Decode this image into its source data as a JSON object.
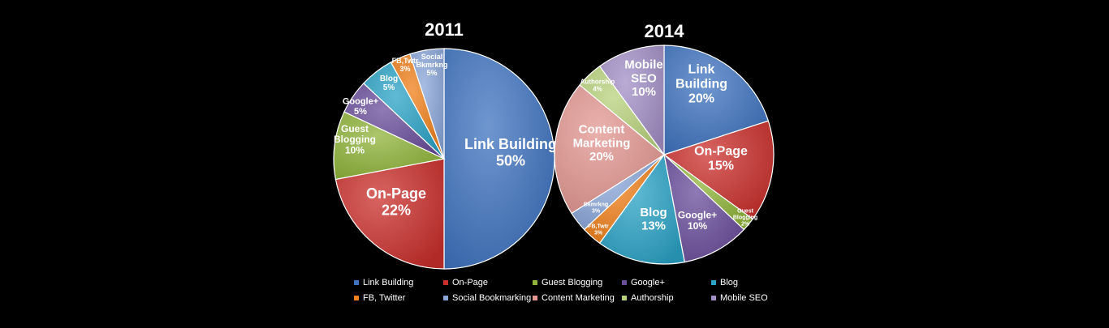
{
  "chart_data": [
    {
      "type": "pie",
      "title": "2011",
      "categories": [
        "Link Building",
        "On-Page",
        "Guest Blogging",
        "Google+",
        "Blog",
        "FB, Twitter",
        "Social Bookmarking"
      ],
      "values": [
        50,
        22,
        10,
        5,
        5,
        3,
        5
      ],
      "slice_labels": [
        [
          "Link Building",
          "50%"
        ],
        [
          "On-Page",
          "22%"
        ],
        [
          "Guest",
          "Blogging",
          "10%"
        ],
        [
          "Google+",
          "5%"
        ],
        [
          "Blog",
          "5%"
        ],
        [
          "FB,Twtr",
          "3%"
        ],
        [
          "Social",
          "Bkmrkng",
          "5%"
        ]
      ]
    },
    {
      "type": "pie",
      "title": "2014",
      "categories": [
        "Link Building",
        "On-Page",
        "Guest Blogging",
        "Google+",
        "Blog",
        "FB, Twitter",
        "Social Bookmarking",
        "Content Marketing",
        "Authorship",
        "Mobile SEO"
      ],
      "values": [
        20,
        15,
        2,
        10,
        13,
        3,
        3,
        20,
        4,
        10
      ],
      "slice_labels": [
        [
          "Link",
          "Building",
          "20%"
        ],
        [
          "On-Page",
          "15%"
        ],
        [
          "Guest",
          "Blogging",
          "2%"
        ],
        [
          "Google+",
          "10%"
        ],
        [
          "Blog",
          "13%"
        ],
        [
          "FB,Twtr",
          "3%"
        ],
        [
          "Bkmrkng",
          "3%"
        ],
        [
          "Content",
          "Marketing",
          "20%"
        ],
        [
          "Authorship",
          "4%"
        ],
        [
          "Mobile",
          "SEO",
          "10%"
        ]
      ]
    }
  ],
  "legend": [
    {
      "label": "Link Building",
      "color": "#3f73bf"
    },
    {
      "label": "On-Page",
      "color": "#c9302c"
    },
    {
      "label": "Guest Blogging",
      "color": "#8fb339"
    },
    {
      "label": "Google+",
      "color": "#6a4d9b"
    },
    {
      "label": "Blog",
      "color": "#2ba3c6"
    },
    {
      "label": "FB, Twitter",
      "color": "#ef7f1a"
    },
    {
      "label": "Social Bookmarking",
      "color": "#8aa6d8"
    },
    {
      "label": "Content Marketing",
      "color": "#e39791"
    },
    {
      "label": "Authorship",
      "color": "#b8d27c"
    },
    {
      "label": "Mobile SEO",
      "color": "#a28fc6"
    }
  ]
}
